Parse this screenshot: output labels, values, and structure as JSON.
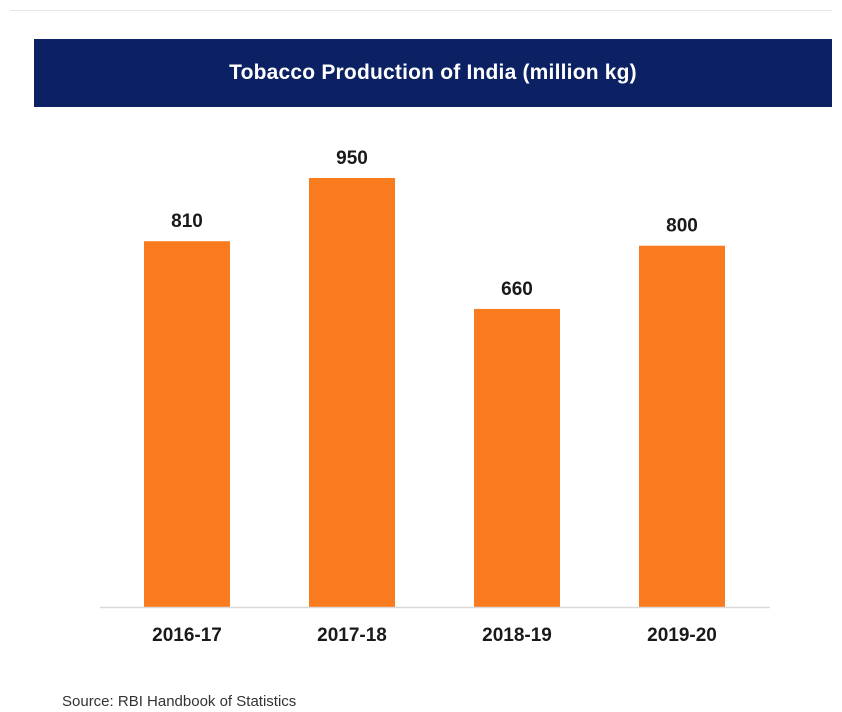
{
  "chart_data": {
    "type": "bar",
    "title": "Tobacco Production of India (million kg)",
    "categories": [
      "2016-17",
      "2017-18",
      "2018-19",
      "2019-20"
    ],
    "values": [
      810,
      950,
      660,
      800
    ],
    "xlabel": "",
    "ylabel": "",
    "ylim": [
      0,
      950
    ],
    "grid": false,
    "data_labels": true
  },
  "source": "Source: RBI Handbook of Statistics",
  "colors": {
    "banner": "#0b2164",
    "bar": "#fa7a1e",
    "baseline": "#d9d9d9"
  }
}
